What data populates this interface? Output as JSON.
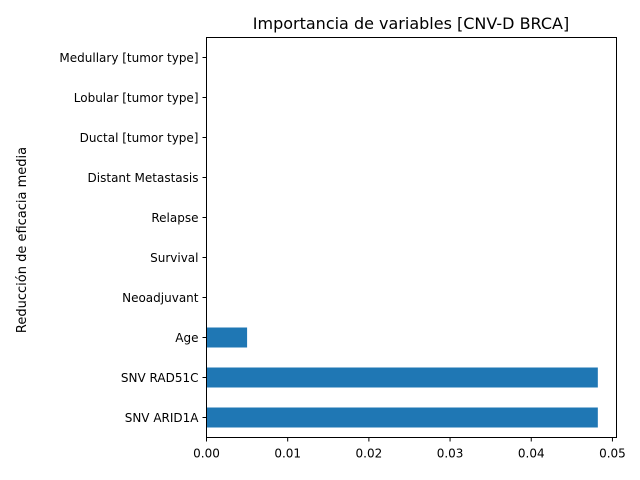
{
  "chart_data": {
    "type": "bar",
    "orientation": "horizontal",
    "title": "Importancia de variables [CNV-D BRCA]",
    "xlabel": "",
    "ylabel": "Reducción de eficacia media",
    "categories": [
      "SNV ARID1A",
      "SNV RAD51C",
      "Age",
      "Neoadjuvant",
      "Survival",
      "Relapse",
      "Distant Metastasis",
      "Ductal [tumor type]",
      "Lobular [tumor type]",
      "Medullary [tumor type]"
    ],
    "values": [
      0.0482,
      0.0482,
      0.005,
      0,
      0,
      0,
      0,
      0,
      0,
      0
    ],
    "xlim": [
      0,
      0.0505
    ],
    "xticks": [
      0,
      0.01,
      0.02,
      0.03,
      0.04,
      0.05
    ],
    "xtick_labels": [
      "0.00",
      "0.01",
      "0.02",
      "0.03",
      "0.04",
      "0.05"
    ],
    "grid": false,
    "legend": "none",
    "bar_color": "#1f77b4"
  }
}
